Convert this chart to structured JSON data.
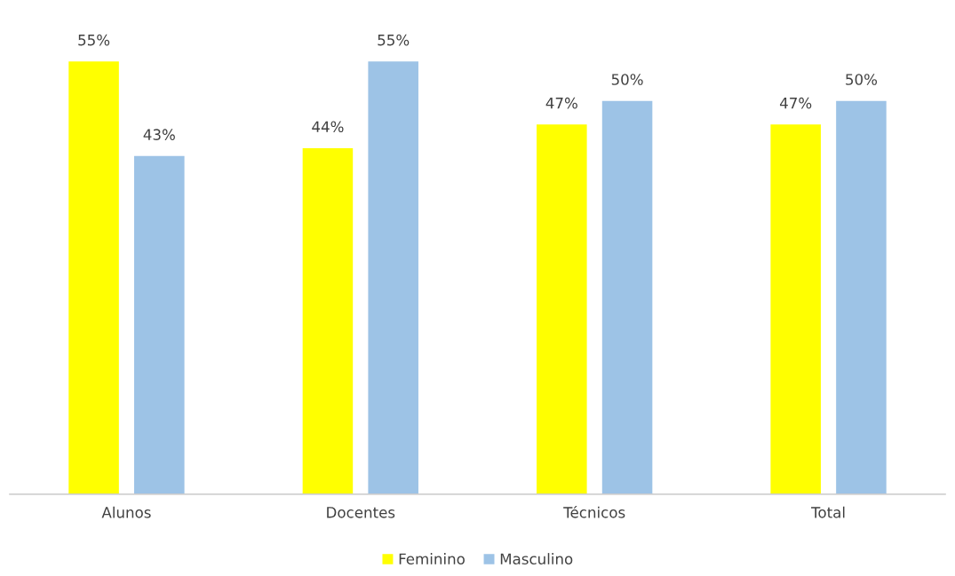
{
  "chart_data": {
    "type": "bar",
    "categories": [
      "Alunos",
      "Docentes",
      "Técnicos",
      "Total"
    ],
    "series": [
      {
        "name": "Feminino",
        "color": "#ffff00",
        "values": [
          55,
          44,
          47,
          47
        ],
        "value_labels": [
          "55%",
          "44%",
          "47%",
          "47%"
        ]
      },
      {
        "name": "Masculino",
        "color": "#9dc3e6",
        "values": [
          43,
          55,
          50,
          50
        ],
        "value_labels": [
          "43%",
          "55%",
          "50%",
          "50%"
        ]
      }
    ],
    "tick_labels": "x",
    "legend": "bottom",
    "grid": false
  }
}
